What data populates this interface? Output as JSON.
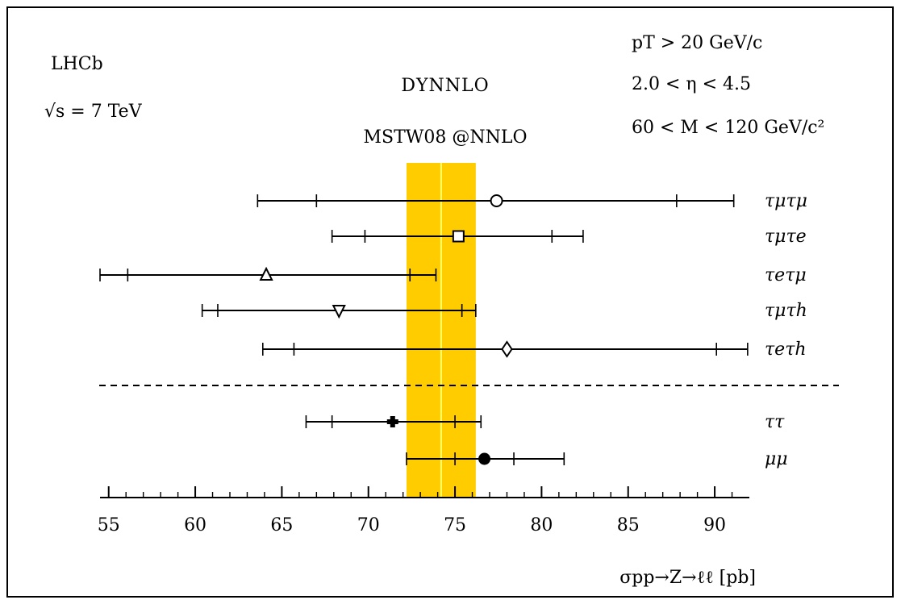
{
  "chart_data": {
    "type": "scatter",
    "experiment": "LHCb",
    "energy_label": "√s = 7 TeV",
    "theory": {
      "program": "DYNNLO",
      "pdf": "MSTW08 @NNLO",
      "central": 74.2,
      "band": [
        72.2,
        76.2
      ],
      "color": "#ffcc00",
      "line_color": "#ffff66"
    },
    "cuts": [
      "pT > 20 GeV/c",
      "2.0 < η < 4.5",
      "60 < M < 120 GeV/c²"
    ],
    "xlabel": "σpp→Z→ℓℓ [pb]",
    "xlim": [
      54.5,
      92
    ],
    "xticks": [
      55,
      60,
      65,
      70,
      75,
      80,
      85,
      90
    ],
    "separator_after": "τeτh",
    "series": [
      {
        "name": "τμτμ",
        "value": 77.4,
        "inner": [
          67.0,
          87.8
        ],
        "outer": [
          63.6,
          91.1
        ],
        "marker": "circle-open"
      },
      {
        "name": "τμτe",
        "value": 75.2,
        "inner": [
          69.8,
          80.6
        ],
        "outer": [
          67.9,
          82.4
        ],
        "marker": "square-open"
      },
      {
        "name": "τeτμ",
        "value": 64.1,
        "inner": [
          56.1,
          72.4
        ],
        "outer": [
          54.5,
          73.9
        ],
        "marker": "triangle-up-open"
      },
      {
        "name": "τμτh",
        "value": 68.3,
        "inner": [
          61.3,
          75.4
        ],
        "outer": [
          60.4,
          76.2
        ],
        "marker": "triangle-down-open"
      },
      {
        "name": "τeτh",
        "value": 78.0,
        "inner": [
          65.7,
          90.1
        ],
        "outer": [
          63.9,
          91.9
        ],
        "marker": "diamond-open"
      },
      {
        "name": "ττ",
        "value": 71.4,
        "inner": [
          67.9,
          75.0
        ],
        "outer": [
          66.4,
          76.5
        ],
        "marker": "cross-filled"
      },
      {
        "name": "μμ",
        "value": 76.7,
        "inner": [
          75.0,
          78.4
        ],
        "outer": [
          72.2,
          81.3
        ],
        "marker": "circle-filled"
      }
    ]
  }
}
